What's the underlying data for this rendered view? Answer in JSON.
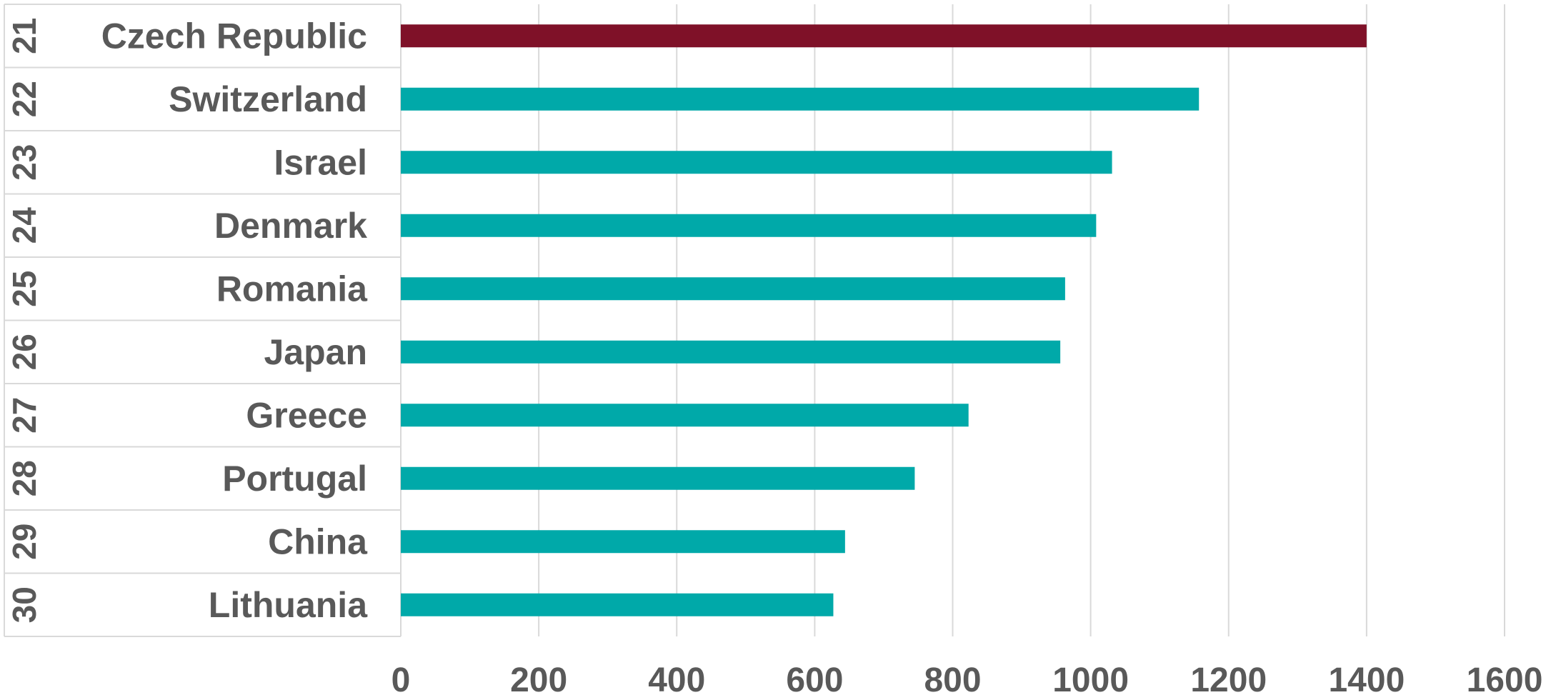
{
  "chart_data": {
    "type": "bar",
    "orientation": "horizontal",
    "categories": [
      "Czech Republic",
      "Switzerland",
      "Israel",
      "Denmark",
      "Romania",
      "Japan",
      "Greece",
      "Portugal",
      "China",
      "Lithuania"
    ],
    "ranks": [
      "21",
      "22",
      "23",
      "24",
      "25",
      "26",
      "27",
      "28",
      "29",
      "30"
    ],
    "values": [
      1400,
      1157,
      1031,
      1008,
      963,
      956,
      823,
      745,
      644,
      627
    ],
    "highlight_index": 0,
    "colors": {
      "highlight": "#7f1128",
      "default": "#00a9a9",
      "grid": "#d9d9d9",
      "text": "#595959"
    },
    "xlim": [
      0,
      1600
    ],
    "xticks": [
      0,
      200,
      400,
      600,
      800,
      1000,
      1200,
      1400,
      1600
    ],
    "grid": true,
    "title": "",
    "xlabel": "",
    "ylabel": ""
  }
}
